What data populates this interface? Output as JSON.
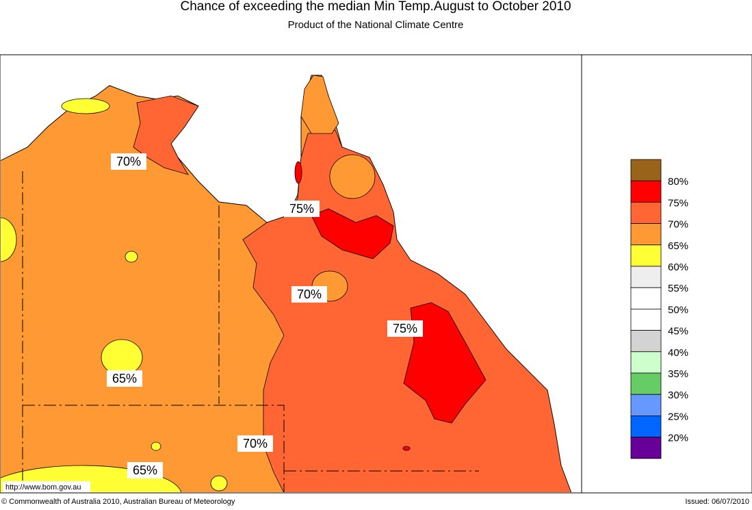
{
  "header": {
    "title": "Chance of exceeding the median Min Temp.August to October 2010",
    "subtitle": "Product of the National Climate Centre"
  },
  "legend": {
    "colors": [
      "#996319",
      "#ff0000",
      "#ff6633",
      "#ff9933",
      "#ffff33",
      "#eeeeee",
      "#ffffff",
      "#ffffff",
      "#d3d3d3",
      "#ccffcc",
      "#66cc66",
      "#6699ff",
      "#0066ff",
      "#660099"
    ],
    "labels": [
      "80%",
      "75%",
      "70%",
      "65%",
      "60%",
      "55%",
      "50%",
      "45%",
      "40%",
      "35%",
      "30%",
      "25%",
      "20%"
    ]
  },
  "map_labels": [
    "70%",
    "75%",
    "70%",
    "75%",
    "65%",
    "70%",
    "65%"
  ],
  "footer": {
    "url": "http://www.bom.gov.au",
    "copyright": "© Commonwealth of Australia 2010, Australian Bureau of Meteorology",
    "issued": "Issued: 06/07/2010"
  }
}
